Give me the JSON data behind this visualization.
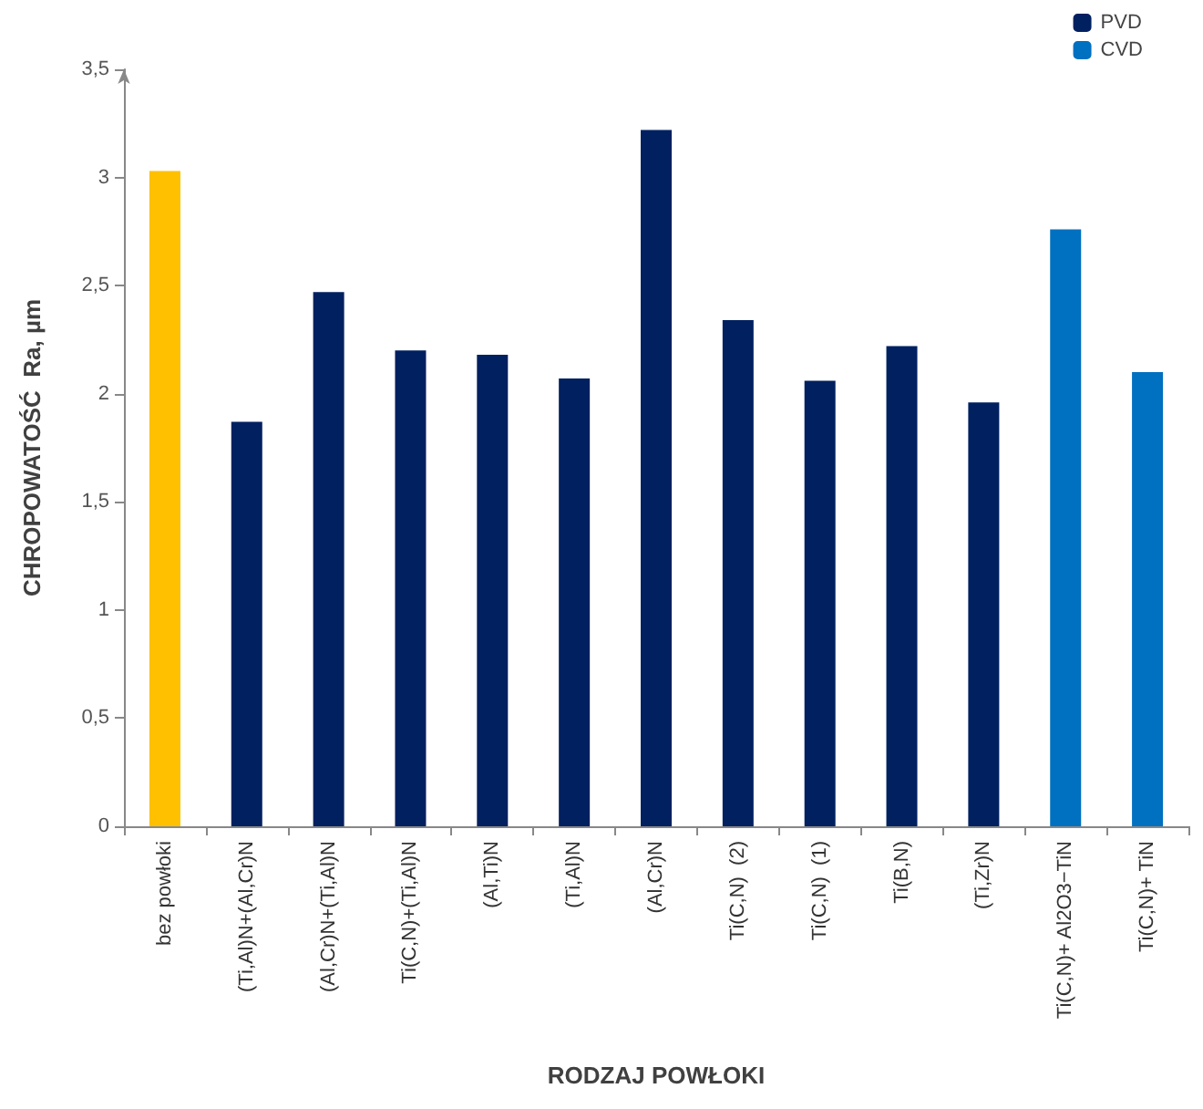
{
  "chart_data": {
    "type": "bar",
    "xlabel": "RODZAJ POWŁOKI",
    "ylabel": "CHROPOWATOŚĆ  Ra, µm",
    "categories": [
      "bez powłoki",
      "(Ti,Al)N+(Al,Cr)N",
      "(Al,Cr)N+(Ti,Al)N",
      "Ti(C,N)+(Ti,Al)N",
      "(Al,Ti)N",
      "(Ti,Al)N",
      "(Al,Cr)N",
      "Ti(C,N)  (2)",
      "Ti(C,N)  (1)",
      "Ti(B,N)",
      "(Ti,Zr)N",
      "Ti(C,N)+ Al2O3−TiN",
      "Ti(C,N)+ TiN"
    ],
    "series": [
      {
        "color": "#ffc000",
        "values": [
          3.03,
          null,
          null,
          null,
          null,
          null,
          null,
          null,
          null,
          null,
          null,
          null,
          null
        ]
      },
      {
        "name": "PVD",
        "color": "#002060",
        "values": [
          null,
          1.87,
          2.47,
          2.2,
          2.18,
          2.07,
          3.22,
          2.34,
          2.06,
          2.22,
          1.96,
          null,
          null
        ]
      },
      {
        "name": "CVD",
        "color": "#0070c0",
        "values": [
          null,
          null,
          null,
          null,
          null,
          null,
          null,
          null,
          null,
          null,
          null,
          2.76,
          2.1
        ]
      }
    ],
    "stacked": true,
    "ylim": [
      0,
      3.5
    ],
    "yticks": [
      0,
      {
        "value": 0.5,
        "label": "0,5"
      },
      1,
      {
        "value": 1.5,
        "label": "1,5"
      },
      2,
      {
        "value": 2.5,
        "label": "2,5"
      },
      3,
      {
        "value": 3.5,
        "label": "3,5"
      }
    ],
    "grid": false,
    "legend": "top right"
  }
}
